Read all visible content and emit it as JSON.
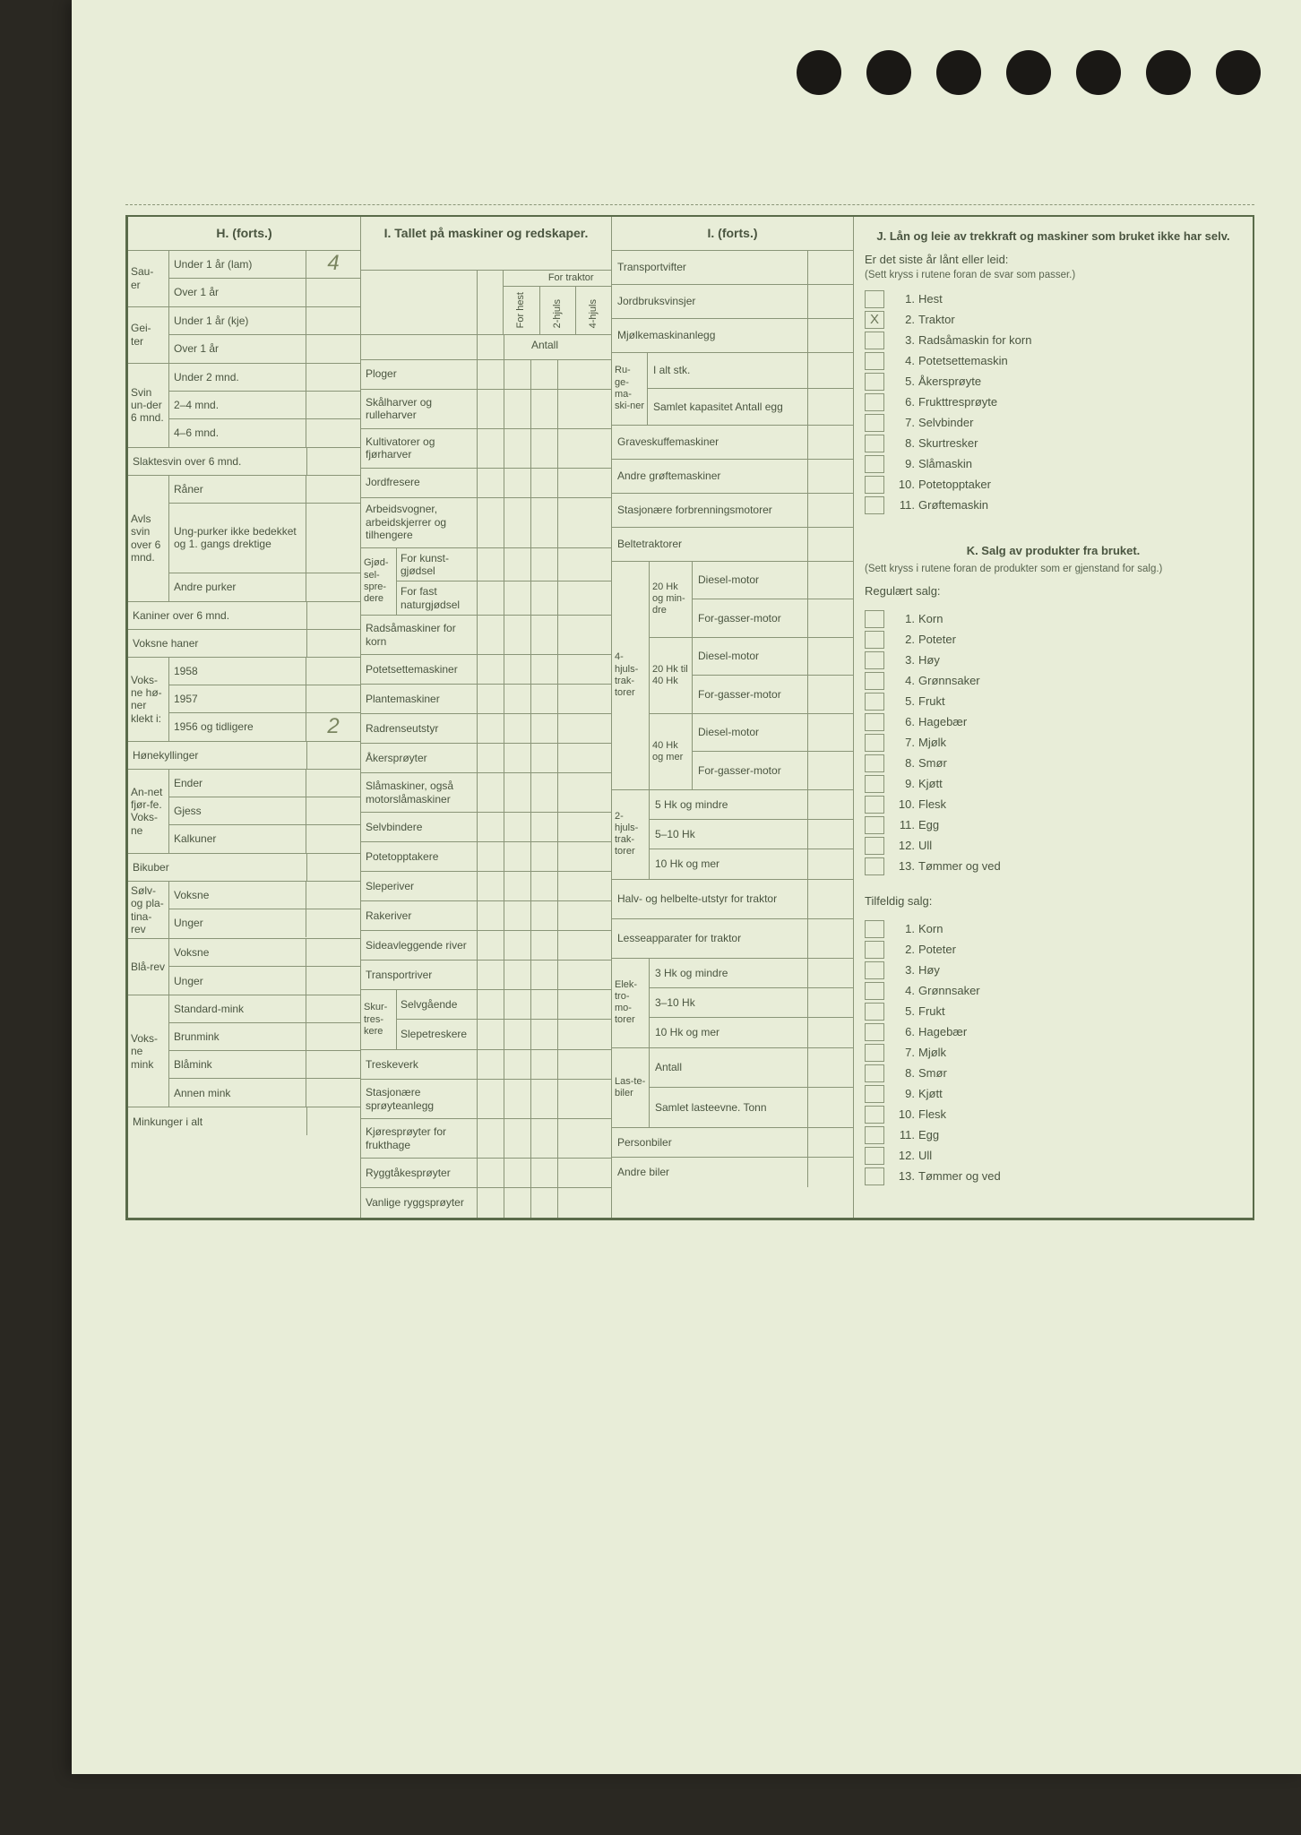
{
  "background_color": "#e8edd8",
  "border_color": "#5a6b4a",
  "grid_color": "#8a9578",
  "text_color": "#4a5540",
  "handwriting_color": "#7a8560",
  "H": {
    "title": "H. (forts.)",
    "groups": [
      {
        "label": "Sau-\ner",
        "rows": [
          {
            "l": "Under 1 år (lam)",
            "v": "4"
          },
          {
            "l": "Over 1 år",
            "v": ""
          }
        ]
      },
      {
        "label": "Gei-\nter",
        "rows": [
          {
            "l": "Under 1 år (kje)",
            "v": ""
          },
          {
            "l": "Over 1 år",
            "v": ""
          }
        ]
      },
      {
        "label": "Svin un-der 6 mnd.",
        "rows": [
          {
            "l": "Under 2 mnd.",
            "v": ""
          },
          {
            "l": "2–4 mnd.",
            "v": ""
          },
          {
            "l": "4–6 mnd.",
            "v": ""
          }
        ]
      },
      {
        "label": "Slaktesvin over 6 mnd.",
        "full": true,
        "v": ""
      },
      {
        "label": "Avls svin over 6 mnd.",
        "rows": [
          {
            "l": "Råner",
            "v": ""
          },
          {
            "l": "Ung-purker ikke bedekket og 1. gangs drektige",
            "v": "",
            "tall": true
          },
          {
            "l": "Andre purker",
            "v": ""
          }
        ]
      },
      {
        "label": "Kaniner over 6 mnd.",
        "full": true,
        "v": ""
      },
      {
        "label": "Voksne haner",
        "full": true,
        "v": ""
      },
      {
        "label": "Voks-ne hø-ner klekt i:",
        "rows": [
          {
            "l": "1958",
            "v": ""
          },
          {
            "l": "1957",
            "v": ""
          },
          {
            "l": "1956 og tidligere",
            "v": "2"
          }
        ]
      },
      {
        "label": "Hønekyllinger",
        "full": true,
        "v": ""
      },
      {
        "label": "An-net fjør-fe. Voks-ne",
        "rows": [
          {
            "l": "Ender",
            "v": ""
          },
          {
            "l": "Gjess",
            "v": ""
          },
          {
            "l": "Kalkuner",
            "v": ""
          }
        ]
      },
      {
        "label": "Bikuber",
        "full": true,
        "v": ""
      },
      {
        "label": "Sølv- og pla-tina-rev",
        "rows": [
          {
            "l": "Voksne",
            "v": ""
          },
          {
            "l": "Unger",
            "v": ""
          }
        ]
      },
      {
        "label": "Blå-rev",
        "rows": [
          {
            "l": "Voksne",
            "v": ""
          },
          {
            "l": "Unger",
            "v": ""
          }
        ]
      },
      {
        "label": "Voks-ne mink",
        "rows": [
          {
            "l": "Standard-mink",
            "v": ""
          },
          {
            "l": "Brunmink",
            "v": ""
          },
          {
            "l": "Blåmink",
            "v": ""
          },
          {
            "l": "Annen mink",
            "v": ""
          }
        ]
      },
      {
        "label": "Minkunger i alt",
        "full": true,
        "v": ""
      }
    ]
  },
  "I": {
    "title": "I. Tallet på maskiner og redskaper.",
    "cols": [
      "For hest",
      "2-hjuls",
      "4-hjuls"
    ],
    "traktor_hdr": "For traktor",
    "antall": "Antall",
    "rows": [
      "Ploger",
      "Skålharver og rulleharver",
      "Kultivatorer og fjørharver",
      "Jordfresere",
      "Arbeidsvogner, arbeidskjerrer og tilhengere"
    ],
    "gjodsel": {
      "head": "Gjød-sel-spre-dere",
      "rows": [
        "For kunst-gjødsel",
        "For fast naturgjødsel"
      ]
    },
    "rows2": [
      "Radsåmaskiner for korn",
      "Potetsettemaskiner",
      "Plantemaskiner",
      "Radrenseutstyr",
      "Åkersprøyter",
      "Slåmaskiner, også motorslåmaskiner",
      "Selvbindere",
      "Potetopptakere",
      "Sleperiver",
      "Rakeriver",
      "Sideavleggende river",
      "Transportriver"
    ],
    "skur": {
      "head": "Skur-tres-kere",
      "rows": [
        "Selvgående",
        "Slepetreskere"
      ]
    },
    "rows3": [
      "Treskeverk",
      "Stasjonære sprøyteanlegg",
      "Kjøresprøyter for frukthage",
      "Ryggtåkesprøyter",
      "Vanlige ryggsprøyter"
    ]
  },
  "IF": {
    "title": "I. (forts.)",
    "simple": [
      "Transportvifter",
      "Jordbruksvinsjer",
      "Mjølkemaskinanlegg"
    ],
    "ruge": {
      "head": "Ru-ge-ma-ski-ner",
      "rows": [
        "I alt stk.",
        "Samlet kapasitet Antall egg"
      ]
    },
    "simple2": [
      "Graveskuffemaskiner",
      "Andre grøftemaskiner",
      "Stasjonære forbrenningsmotorer",
      "Beltetraktorer"
    ],
    "fourwheel": {
      "head": "4-hjuls-trak-torer",
      "groups": [
        {
          "h": "20 Hk og min-dre",
          "rows": [
            "Diesel-motor",
            "For-gasser-motor"
          ]
        },
        {
          "h": "20 Hk til 40 Hk",
          "rows": [
            "Diesel-motor",
            "For-gasser-motor"
          ]
        },
        {
          "h": "40 Hk og mer",
          "rows": [
            "Diesel-motor",
            "For-gasser-motor"
          ]
        }
      ]
    },
    "twowheel": {
      "head": "2-hjuls-trak-torer",
      "rows": [
        "5 Hk og mindre",
        "5–10 Hk",
        "10 Hk og mer"
      ]
    },
    "halv": "Halv- og helbelte-utstyr for traktor",
    "lesse": "Lesseapparater for traktor",
    "elek": {
      "head": "Elek-tro-mo-torer",
      "rows": [
        "3 Hk og mindre",
        "3–10 Hk",
        "10 Hk og mer"
      ]
    },
    "laste": {
      "head": "Las-te-biler",
      "rows": [
        "Antall",
        "Samlet lasteevne. Tonn"
      ]
    },
    "simple3": [
      "Personbiler",
      "Andre biler"
    ]
  },
  "J": {
    "title": "J. Lån og leie av trekkraft og maskiner som bruket ikke har selv.",
    "q": "Er det siste år lånt eller leid:",
    "note": "(Sett kryss i rutene foran de svar som passer.)",
    "items": [
      {
        "n": "1.",
        "l": "Hest",
        "x": ""
      },
      {
        "n": "2.",
        "l": "Traktor",
        "x": "X"
      },
      {
        "n": "3.",
        "l": "Radsåmaskin for korn",
        "x": ""
      },
      {
        "n": "4.",
        "l": "Potetsettemaskin",
        "x": ""
      },
      {
        "n": "5.",
        "l": "Åkersprøyte",
        "x": ""
      },
      {
        "n": "6.",
        "l": "Frukttresprøyte",
        "x": ""
      },
      {
        "n": "7.",
        "l": "Selvbinder",
        "x": ""
      },
      {
        "n": "8.",
        "l": "Skurtresker",
        "x": ""
      },
      {
        "n": "9.",
        "l": "Slåmaskin",
        "x": ""
      },
      {
        "n": "10.",
        "l": "Potetopptaker",
        "x": ""
      },
      {
        "n": "11.",
        "l": "Grøftemaskin",
        "x": ""
      }
    ]
  },
  "K": {
    "title": "K. Salg av produkter fra bruket.",
    "note": "(Sett kryss i rutene foran de produkter som er gjenstand for salg.)",
    "reg": "Regulært salg:",
    "tilf": "Tilfeldig salg:",
    "items": [
      {
        "n": "1.",
        "l": "Korn"
      },
      {
        "n": "2.",
        "l": "Poteter"
      },
      {
        "n": "3.",
        "l": "Høy"
      },
      {
        "n": "4.",
        "l": "Grønnsaker"
      },
      {
        "n": "5.",
        "l": "Frukt"
      },
      {
        "n": "6.",
        "l": "Hagebær"
      },
      {
        "n": "7.",
        "l": "Mjølk"
      },
      {
        "n": "8.",
        "l": "Smør"
      },
      {
        "n": "9.",
        "l": "Kjøtt"
      },
      {
        "n": "10.",
        "l": "Flesk"
      },
      {
        "n": "11.",
        "l": "Egg"
      },
      {
        "n": "12.",
        "l": "Ull"
      },
      {
        "n": "13.",
        "l": "Tømmer og ved"
      }
    ]
  }
}
